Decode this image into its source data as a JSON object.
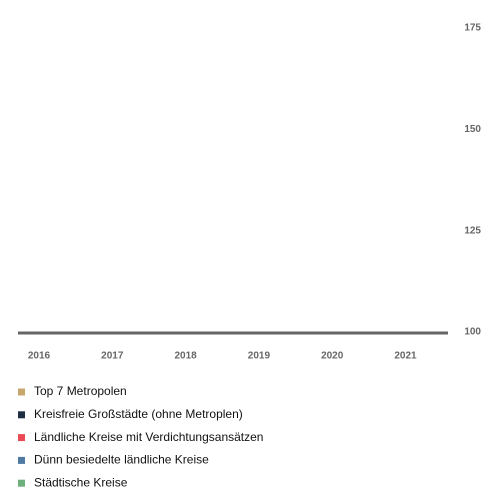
{
  "chart_data": {
    "type": "line",
    "categories": [
      "2016",
      "2017",
      "2018",
      "2019",
      "2020",
      "2021"
    ],
    "series": [
      {
        "name": "Top 7 Metropolen",
        "color": "#c9a56e",
        "values": [
          null,
          null,
          null,
          null,
          null,
          null
        ]
      },
      {
        "name": "Kreisfreie Großstädte (ohne Metroplen)",
        "color": "#1f2f43",
        "values": [
          null,
          null,
          null,
          null,
          null,
          null
        ]
      },
      {
        "name": "Ländliche Kreise mit Verdichtungsansätzen",
        "color": "#ea4a55",
        "values": [
          null,
          null,
          null,
          null,
          null,
          null
        ]
      },
      {
        "name": "Dünn besiedelte ländliche Kreise",
        "color": "#4f7aa3",
        "values": [
          null,
          null,
          null,
          null,
          null,
          null
        ]
      },
      {
        "name": "Städtische Kreise",
        "color": "#6db07c",
        "values": [
          null,
          null,
          null,
          null,
          null,
          null
        ]
      }
    ],
    "ylim": [
      100,
      175
    ],
    "yticks": [
      100,
      125,
      150,
      175
    ],
    "grid": false
  }
}
